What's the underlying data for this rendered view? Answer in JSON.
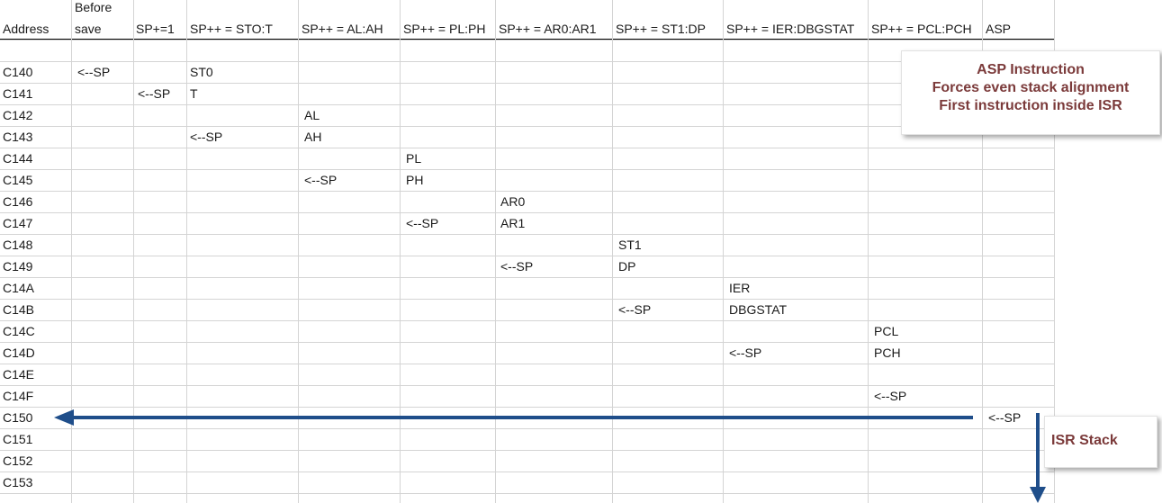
{
  "columns": [
    "Address",
    "Before save",
    "SP+=1",
    "SP++ = STO:T",
    "SP++ = AL:AH",
    "SP++ = PL:PH",
    "SP++ = AR0:AR1",
    "SP++ = ST1:DP",
    "SP++ = IER:DBGSTAT",
    "SP++ = PCL:PCH",
    "ASP"
  ],
  "header": {
    "address": "Address",
    "before_line1": "Before",
    "before_line2": "save",
    "c2": "SP+=1",
    "c3": "SP++ = STO:T",
    "c4": "SP++ = AL:AH",
    "c5": "SP++ = PL:PH",
    "c6": "SP++ = AR0:AR1",
    "c7": "SP++ = ST1:DP",
    "c8": "SP++ = IER:DBGSTAT",
    "c9": "SP++ = PCL:PCH",
    "c10": "ASP"
  },
  "rows": [
    {
      "address": "C140",
      "cells": {
        "1": "<--SP",
        "3": "ST0"
      }
    },
    {
      "address": "C141",
      "cells": {
        "2": "<--SP",
        "3": "T"
      }
    },
    {
      "address": "C142",
      "cells": {
        "4": "AL"
      }
    },
    {
      "address": "C143",
      "cells": {
        "3": "<--SP",
        "4": "AH"
      }
    },
    {
      "address": "C144",
      "cells": {
        "5": "PL"
      }
    },
    {
      "address": "C145",
      "cells": {
        "4": "<--SP",
        "5": "PH"
      }
    },
    {
      "address": "C146",
      "cells": {
        "6": "AR0"
      }
    },
    {
      "address": "C147",
      "cells": {
        "5": "<--SP",
        "6": "AR1"
      }
    },
    {
      "address": "C148",
      "cells": {
        "7": "ST1"
      }
    },
    {
      "address": "C149",
      "cells": {
        "6": "<--SP",
        "7": "DP"
      }
    },
    {
      "address": "C14A",
      "cells": {
        "8": "IER"
      }
    },
    {
      "address": "C14B",
      "cells": {
        "7": "<--SP",
        "8": "DBGSTAT"
      }
    },
    {
      "address": "C14C",
      "cells": {
        "9": "PCL"
      }
    },
    {
      "address": "C14D",
      "cells": {
        "8": "<--SP",
        "9": "PCH"
      }
    },
    {
      "address": "C14E",
      "cells": {}
    },
    {
      "address": "C14F",
      "cells": {
        "9": "<--SP"
      }
    },
    {
      "address": "C150",
      "cells": {
        "10": "<--SP"
      }
    },
    {
      "address": "C151",
      "cells": {}
    },
    {
      "address": "C152",
      "cells": {}
    },
    {
      "address": "C153",
      "cells": {}
    }
  ],
  "callout_asp": {
    "line1": "ASP Instruction",
    "line2": "Forces even stack alignment",
    "line3": "First instruction inside ISR"
  },
  "callout_isr": {
    "label": "ISR Stack"
  },
  "colors": {
    "arrow": "#1f4e8a",
    "callout_text": "#7b3a3a",
    "grid": "#d4d4d4"
  }
}
